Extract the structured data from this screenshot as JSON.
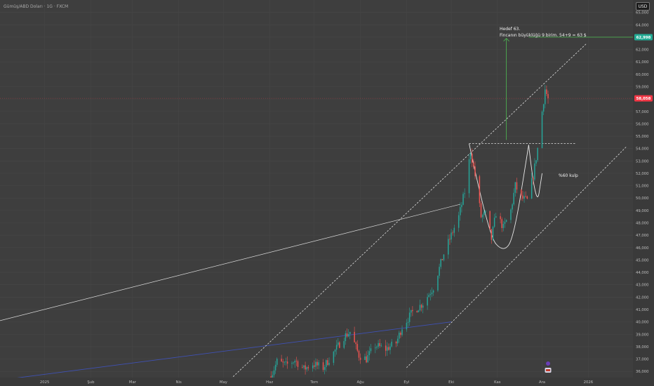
{
  "header": {
    "symbol": "Gümüş/ABD Doları · 1G · FXCM",
    "currency_label": "USD"
  },
  "annotations": {
    "target_line1": "Hedef 63.",
    "target_line2": "Fincanın büyüklüğü 9 birim. 54+9 = 63 $",
    "cup_label": "%60 kulp"
  },
  "colors": {
    "background": "#3e3e3e",
    "bull_candle": "#26a69a",
    "bear_candle": "#ef5350",
    "target_arrow": "#4caf50",
    "trendline_blue": "#3f51b5",
    "trendline_white": "#d9d9d9",
    "last_price_badge": "#f23645",
    "target_badge": "#22ab94"
  },
  "chart_data": {
    "type": "candlestick",
    "title": "",
    "xlabel": "",
    "ylabel": "",
    "ylim": [
      35500,
      66000
    ],
    "grid": true,
    "y_ticks": [
      36000,
      37000,
      38000,
      39000,
      40000,
      41000,
      42000,
      43000,
      44000,
      45000,
      46000,
      47000,
      48000,
      49000,
      50000,
      51000,
      52000,
      53000,
      54000,
      55000,
      56000,
      57000,
      58000,
      59000,
      60000,
      61000,
      62000,
      63000,
      64000,
      65000
    ],
    "y_tick_labels": [
      "36,000",
      "37,000",
      "38,000",
      "39,000",
      "40,000",
      "41,000",
      "42,000",
      "43,000",
      "44,000",
      "45,000",
      "46,000",
      "47,000",
      "48,000",
      "49,000",
      "50,000",
      "51,000",
      "52,000",
      "53,000",
      "54,000",
      "55,000",
      "56,000",
      "57,000",
      "58,000",
      "59,000",
      "60,000",
      "61,000",
      "62,000",
      "63,000",
      "64,000",
      "65,000"
    ],
    "x_ticks": [
      "2025",
      "Şub",
      "Mar",
      "Nis",
      "May",
      "Haz",
      "Tem",
      "Ağu",
      "Eyl",
      "Eki",
      "Kas",
      "Ara",
      "2026"
    ],
    "x_tick_dates": [
      "2025-01-01",
      "2025-02-01",
      "2025-03-01",
      "2025-04-01",
      "2025-05-01",
      "2025-06-01",
      "2025-07-01",
      "2025-08-01",
      "2025-09-01",
      "2025-10-01",
      "2025-11-01",
      "2025-12-01",
      "2026-01-01"
    ],
    "xlim": [
      "2024-12-02",
      "2026-01-31"
    ],
    "price_range_start": "2025-06-02",
    "close_path": [
      [
        "2025-06-02",
        35600
      ],
      [
        "2025-06-06",
        36800
      ],
      [
        "2025-06-12",
        36500
      ],
      [
        "2025-06-18",
        36900
      ],
      [
        "2025-06-24",
        36200
      ],
      [
        "2025-06-30",
        36600
      ],
      [
        "2025-07-07",
        36300
      ],
      [
        "2025-07-14",
        37500
      ],
      [
        "2025-07-21",
        38800
      ],
      [
        "2025-07-25",
        39200
      ],
      [
        "2025-07-31",
        37300
      ],
      [
        "2025-08-05",
        37000
      ],
      [
        "2025-08-11",
        38100
      ],
      [
        "2025-08-18",
        37800
      ],
      [
        "2025-08-25",
        38300
      ],
      [
        "2025-08-29",
        39600
      ],
      [
        "2025-09-05",
        40800
      ],
      [
        "2025-09-12",
        41500
      ],
      [
        "2025-09-19",
        42800
      ],
      [
        "2025-09-26",
        45500
      ],
      [
        "2025-10-01",
        47000
      ],
      [
        "2025-10-06",
        48500
      ],
      [
        "2025-10-10",
        50500
      ],
      [
        "2025-10-14",
        53800
      ],
      [
        "2025-10-17",
        51800
      ],
      [
        "2025-10-21",
        48500
      ],
      [
        "2025-10-24",
        48700
      ],
      [
        "2025-10-28",
        46700
      ],
      [
        "2025-10-31",
        48800
      ],
      [
        "2025-11-05",
        47600
      ],
      [
        "2025-11-10",
        49000
      ],
      [
        "2025-11-13",
        51000
      ],
      [
        "2025-11-17",
        50000
      ],
      [
        "2025-11-21",
        49800
      ],
      [
        "2025-11-25",
        51800
      ],
      [
        "2025-11-28",
        54000
      ],
      [
        "2025-12-01",
        57000
      ],
      [
        "2025-12-03",
        58800
      ],
      [
        "2025-12-05",
        58000
      ]
    ],
    "last_price": 58058,
    "last_price_label": "58,058",
    "target_price": 62998,
    "target_price_label": "62,998",
    "resistance_price": 54400,
    "channel_upper": [
      [
        "2025-05-06",
        35400
      ],
      [
        "2025-12-31",
        62500
      ]
    ],
    "channel_lower": [
      [
        "2025-09-01",
        36300
      ],
      [
        "2026-01-27",
        54200
      ]
    ],
    "trendline_blue": [
      [
        "2024-12-02",
        35300
      ],
      [
        "2025-10-01",
        40000
      ]
    ],
    "trendline_white": [
      [
        "2024-12-02",
        40100
      ],
      [
        "2025-10-07",
        49500
      ]
    ],
    "target_arrow": [
      [
        "2025-11-07",
        54700
      ],
      [
        "2025-11-07",
        62900
      ]
    ],
    "target_line": [
      [
        "2025-11-22",
        62998
      ],
      [
        "2026-01-31",
        62998
      ]
    ],
    "cup_curve": [
      [
        "2025-10-13",
        54400
      ],
      [
        "2025-10-26",
        47000
      ],
      [
        "2025-11-05",
        45600
      ],
      [
        "2025-11-12",
        46800
      ],
      [
        "2025-11-22",
        54300
      ]
    ],
    "handle_curve": [
      [
        "2025-11-22",
        54300
      ],
      [
        "2025-11-27",
        48900
      ],
      [
        "2025-12-01",
        52000
      ]
    ]
  }
}
